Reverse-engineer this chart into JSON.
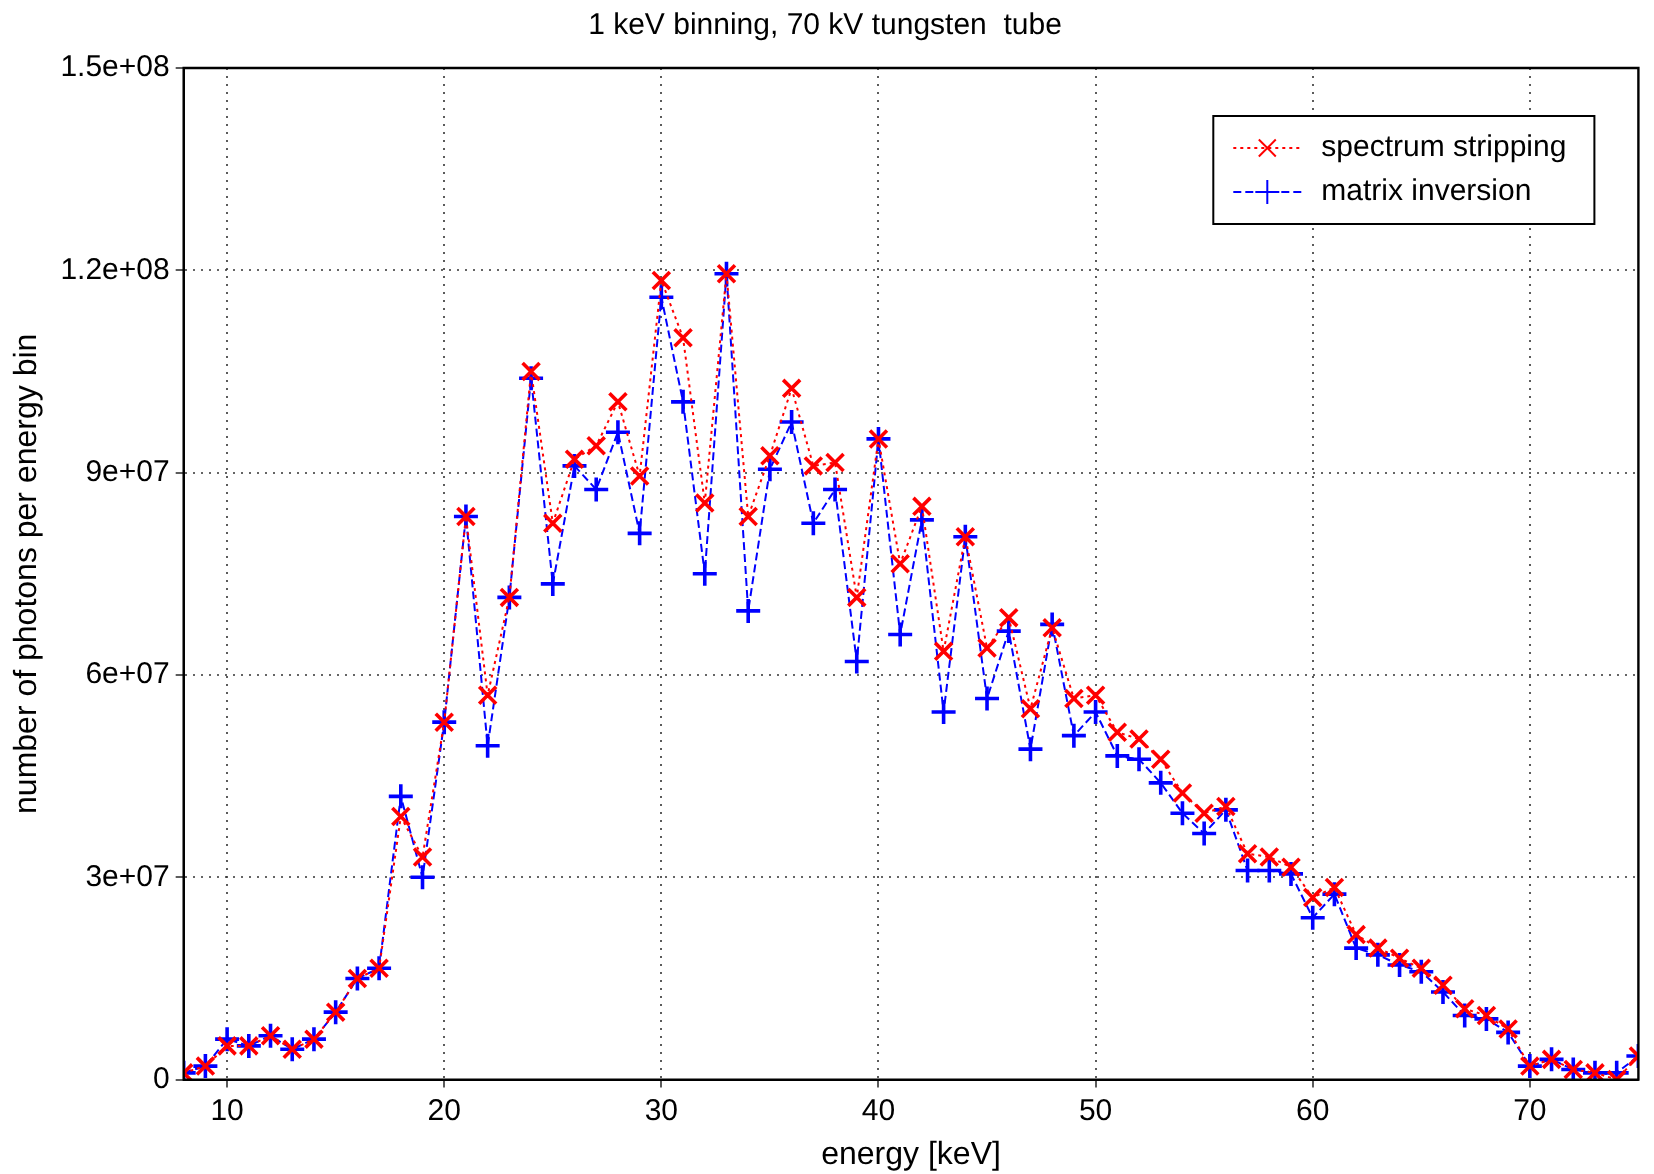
{
  "chart_data": {
    "type": "line",
    "title": "1 keV binning, 70 kV tungsten  tube",
    "xlabel": "energy [keV]",
    "ylabel": "number of photons per energy bin",
    "x": [
      8,
      9,
      10,
      11,
      12,
      13,
      14,
      15,
      16,
      17,
      18,
      19,
      20,
      21,
      22,
      23,
      24,
      25,
      26,
      27,
      28,
      29,
      30,
      31,
      32,
      33,
      34,
      35,
      36,
      37,
      38,
      39,
      40,
      41,
      42,
      43,
      44,
      45,
      46,
      47,
      48,
      49,
      50,
      51,
      52,
      53,
      54,
      55,
      56,
      57,
      58,
      59,
      60,
      61,
      62,
      63,
      64,
      65,
      66,
      67,
      68,
      69,
      70,
      71,
      72,
      73,
      74,
      75
    ],
    "xlim": [
      8,
      75
    ],
    "xticks": [
      10,
      20,
      30,
      40,
      50,
      60,
      70
    ],
    "ylim": [
      0,
      150000000
    ],
    "yticks": [
      0,
      {
        "value": 30000000,
        "label": "3e+07"
      },
      {
        "value": 60000000,
        "label": "6e+07"
      },
      {
        "value": 90000000,
        "label": "9e+07"
      },
      {
        "value": 120000000,
        "label": "1.2e+08"
      },
      {
        "value": 150000000,
        "label": "1.5e+08"
      }
    ],
    "grid": true,
    "legend": "top right",
    "series": [
      {
        "name": "spectrum stripping",
        "color": "#ff0000",
        "marker": "cross",
        "line_style": "dotted",
        "values": [
          1000000,
          2000000,
          5000000,
          5000000,
          6500000,
          4500000,
          6000000,
          10000000,
          15000000,
          16500000,
          39000000,
          33000000,
          53000000,
          83500000,
          57000000,
          71500000,
          105000000,
          82500000,
          92000000,
          94000000,
          100500000,
          89500000,
          118500000,
          110000000,
          85500000,
          119500000,
          83500000,
          92500000,
          102500000,
          91000000,
          91500000,
          71500000,
          95000000,
          76500000,
          85000000,
          63500000,
          80500000,
          64000000,
          68500000,
          55000000,
          67000000,
          56500000,
          57000000,
          51500000,
          50500000,
          47500000,
          42500000,
          39500000,
          40500000,
          33500000,
          33000000,
          31500000,
          27000000,
          28500000,
          21500000,
          19500000,
          18000000,
          16500000,
          14000000,
          10500000,
          9500000,
          7500000,
          2000000,
          3000000,
          1500000,
          1000000,
          0,
          3500000
        ]
      },
      {
        "name": "matrix inversion",
        "color": "#0000ff",
        "marker": "plus",
        "line_style": "dashed",
        "values": [
          1000000,
          2000000,
          6000000,
          5000000,
          6500000,
          4500000,
          6000000,
          10000000,
          15000000,
          16500000,
          42000000,
          30000000,
          53000000,
          83500000,
          49500000,
          71500000,
          104000000,
          73500000,
          91000000,
          87500000,
          96000000,
          81000000,
          116000000,
          100500000,
          75000000,
          119500000,
          69500000,
          90500000,
          97500000,
          82500000,
          87500000,
          62000000,
          95000000,
          66000000,
          83000000,
          54500000,
          80500000,
          56500000,
          66500000,
          49000000,
          67500000,
          51000000,
          54500000,
          48000000,
          47500000,
          44000000,
          39500000,
          36500000,
          40000000,
          31000000,
          31000000,
          30500000,
          24000000,
          27500000,
          19500000,
          18500000,
          17000000,
          16000000,
          13000000,
          9500000,
          9000000,
          7000000,
          2000000,
          3000000,
          1500000,
          1000000,
          1000000,
          3500000
        ]
      }
    ]
  }
}
